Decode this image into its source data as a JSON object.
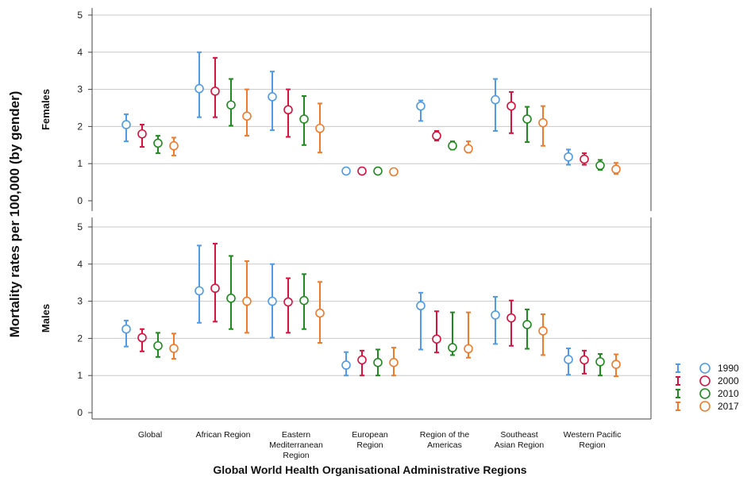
{
  "chart_data": {
    "type": "scatter",
    "subtype": "error-bar-panels",
    "ylabel": "Mortality rates per 100,000 (by gender)",
    "xlabel": "Global World Health Organisational Administrative Regions",
    "categories": [
      [
        "Global"
      ],
      [
        "African Region"
      ],
      [
        "Eastern",
        "Mediterranean",
        "Region"
      ],
      [
        "European",
        "Region"
      ],
      [
        "Region of the",
        "Americas"
      ],
      [
        "Southeast",
        "Asian Region"
      ],
      [
        "Western Pacific",
        "Region"
      ]
    ],
    "ylim": [
      0,
      5
    ],
    "yticks": [
      "0",
      "1",
      "2",
      "3",
      "4",
      "5"
    ],
    "grid": true,
    "legend_position": "right",
    "series": [
      {
        "name": "1990",
        "color": "#4f9be8"
      },
      {
        "name": "2000",
        "color": "#d6123f"
      },
      {
        "name": "2010",
        "color": "#1f8a1f"
      },
      {
        "name": "2017",
        "color": "#f07a2a"
      }
    ],
    "panels": [
      {
        "label": "Females",
        "values": [
          [
            [
              2.05,
              1.6,
              2.33
            ],
            [
              1.8,
              1.45,
              2.05
            ],
            [
              1.55,
              1.28,
              1.75
            ],
            [
              1.48,
              1.22,
              1.7
            ]
          ],
          [
            [
              3.02,
              2.25,
              4.0
            ],
            [
              2.95,
              2.25,
              3.85
            ],
            [
              2.58,
              2.02,
              3.28
            ],
            [
              2.28,
              1.75,
              3.0
            ]
          ],
          [
            [
              2.8,
              1.9,
              3.48
            ],
            [
              2.45,
              1.72,
              3.0
            ],
            [
              2.2,
              1.5,
              2.82
            ],
            [
              1.95,
              1.3,
              2.62
            ]
          ],
          [
            [
              0.8,
              0.75,
              0.85
            ],
            [
              0.8,
              0.75,
              0.85
            ],
            [
              0.8,
              0.75,
              0.86
            ],
            [
              0.78,
              0.7,
              0.85
            ]
          ],
          [
            [
              2.55,
              2.15,
              2.7
            ],
            [
              1.75,
              1.62,
              1.88
            ],
            [
              1.48,
              1.38,
              1.6
            ],
            [
              1.4,
              1.3,
              1.6
            ]
          ],
          [
            [
              2.72,
              1.88,
              3.28
            ],
            [
              2.55,
              1.82,
              2.93
            ],
            [
              2.2,
              1.58,
              2.53
            ],
            [
              2.1,
              1.48,
              2.55
            ]
          ],
          [
            [
              1.18,
              0.97,
              1.38
            ],
            [
              1.12,
              0.97,
              1.28
            ],
            [
              0.95,
              0.83,
              1.1
            ],
            [
              0.85,
              0.72,
              1.02
            ]
          ]
        ]
      },
      {
        "label": "Males",
        "values": [
          [
            [
              2.25,
              1.78,
              2.48
            ],
            [
              2.02,
              1.65,
              2.25
            ],
            [
              1.8,
              1.5,
              2.15
            ],
            [
              1.73,
              1.45,
              2.13
            ]
          ],
          [
            [
              3.28,
              2.42,
              4.5
            ],
            [
              3.35,
              2.45,
              4.55
            ],
            [
              3.08,
              2.25,
              4.22
            ],
            [
              3.0,
              2.15,
              4.08
            ]
          ],
          [
            [
              3.0,
              2.02,
              4.0
            ],
            [
              2.98,
              2.15,
              3.62
            ],
            [
              3.02,
              2.25,
              3.73
            ],
            [
              2.68,
              1.88,
              3.52
            ]
          ],
          [
            [
              1.28,
              1.0,
              1.63
            ],
            [
              1.42,
              1.0,
              1.67
            ],
            [
              1.35,
              1.0,
              1.7
            ],
            [
              1.35,
              1.0,
              1.75
            ]
          ],
          [
            [
              2.88,
              1.7,
              3.23
            ],
            [
              1.98,
              1.62,
              2.73
            ],
            [
              1.75,
              1.55,
              2.7
            ],
            [
              1.72,
              1.48,
              2.7
            ]
          ],
          [
            [
              2.63,
              1.85,
              3.12
            ],
            [
              2.55,
              1.8,
              3.02
            ],
            [
              2.37,
              1.72,
              2.78
            ],
            [
              2.2,
              1.55,
              2.65
            ]
          ],
          [
            [
              1.43,
              1.02,
              1.73
            ],
            [
              1.42,
              1.05,
              1.67
            ],
            [
              1.37,
              1.0,
              1.58
            ],
            [
              1.3,
              0.98,
              1.57
            ]
          ]
        ]
      }
    ]
  }
}
